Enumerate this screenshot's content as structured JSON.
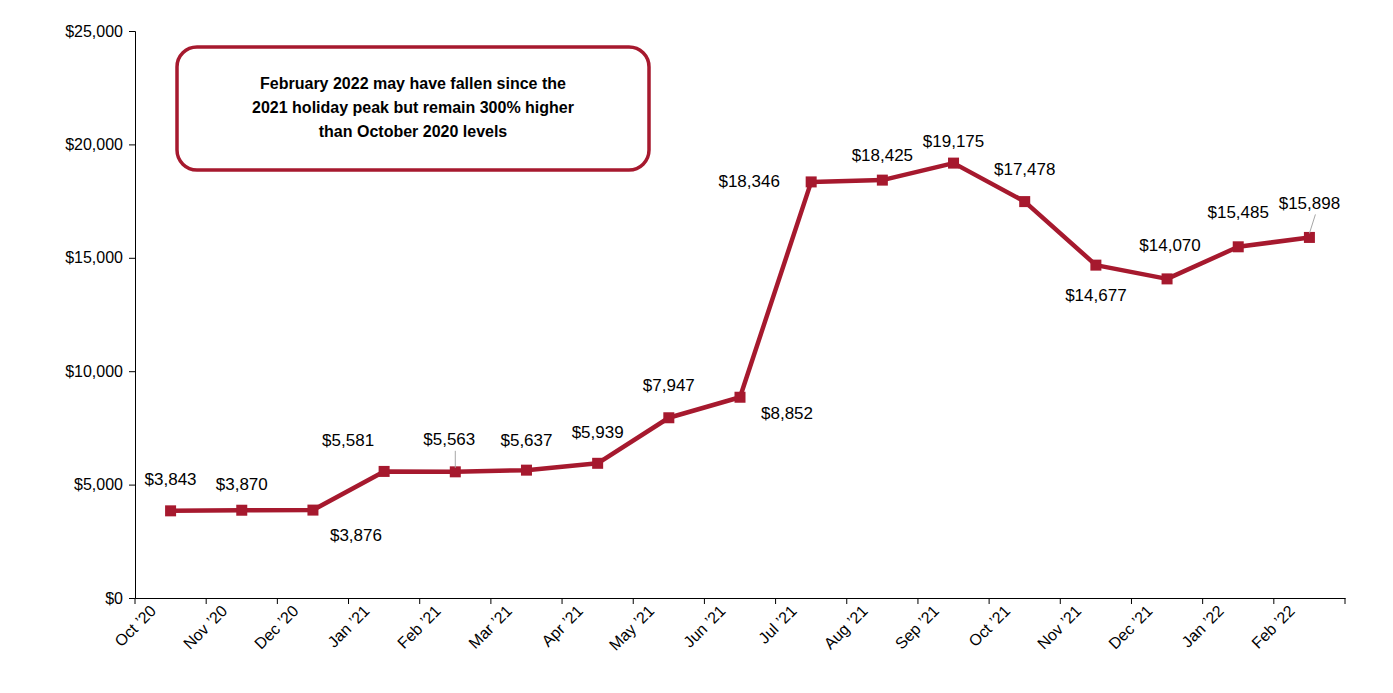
{
  "chart_data": {
    "type": "line",
    "categories": [
      "Oct ’20",
      "Nov ’20",
      "Dec ’20",
      "Jan ’21",
      "Feb ’21",
      "Mar ’21",
      "Apr ’21",
      "May ’21",
      "Jun ’21",
      "Jul ’21",
      "Aug ’21",
      "Sep ’21",
      "Oct ’21",
      "Nov ’21",
      "Dec ’21",
      "Jan ’22",
      "Feb ’22"
    ],
    "values": [
      3843,
      3870,
      3876,
      5581,
      5563,
      5637,
      5939,
      7947,
      8852,
      18346,
      18425,
      19175,
      17478,
      14677,
      14070,
      15485,
      15898
    ],
    "value_labels": [
      "$3,843",
      "$3,870",
      "$3,876",
      "$5,581",
      "$5,563",
      "$5,637",
      "$5,939",
      "$7,947",
      "$8,852",
      "$18,346",
      "$18,425",
      "$19,175",
      "$17,478",
      "$14,677",
      "$14,070",
      "$15,485",
      "$15,898"
    ],
    "color": "#a6192e",
    "marker": "square",
    "line_style": "solid",
    "data_labels": true,
    "grid": false,
    "ylim": [
      0,
      25000
    ],
    "yticks": [
      {
        "value": 0,
        "label": "$0"
      },
      {
        "value": 5000,
        "label": "$5,000"
      },
      {
        "value": 10000,
        "label": "$10,000"
      },
      {
        "value": 15000,
        "label": "$15,000"
      },
      {
        "value": 20000,
        "label": "$20,000"
      },
      {
        "value": 25000,
        "label": "$25,000"
      }
    ],
    "annotation": [
      "February 2022 may have fallen since the",
      "2021 holiday peak but remain 300% higher",
      "than October 2020 levels"
    ]
  }
}
